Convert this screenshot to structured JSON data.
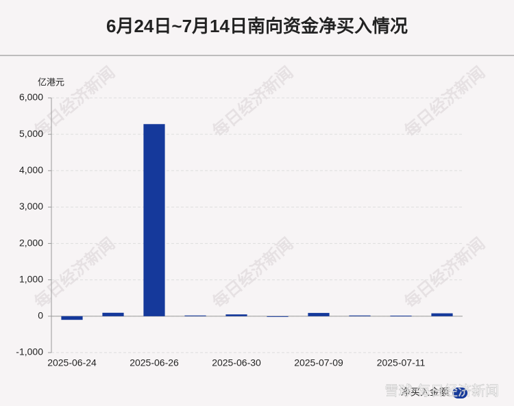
{
  "chart_data": {
    "type": "bar",
    "title": "6月24日~7月14日南向资金净买入情况",
    "y_axis_label": "亿港元",
    "categories": [
      "2025-06-24",
      null,
      "2025-06-26",
      null,
      "2025-06-30",
      null,
      "2025-07-09",
      null,
      "2025-07-11",
      null
    ],
    "series": [
      {
        "name": "净买入金额",
        "color": "#15399b",
        "values": [
          -100,
          95,
          5280,
          20,
          50,
          -10,
          90,
          20,
          15,
          80
        ]
      }
    ],
    "ylim": [
      -1000,
      6000
    ],
    "yticks": [
      {
        "value": -1000,
        "label": "-1,000"
      },
      0,
      {
        "value": 1000,
        "label": "1,000"
      },
      {
        "value": 2000,
        "label": "2,000"
      },
      {
        "value": 3000,
        "label": "3,000"
      },
      {
        "value": 4000,
        "label": "4,000"
      },
      {
        "value": 5000,
        "label": "5,000"
      },
      {
        "value": 6000,
        "label": "6,000"
      }
    ],
    "grid": true,
    "legend": "bottom-right",
    "watermark": "每日经济新闻",
    "footer_watermark": "雪球·每日经济新闻"
  }
}
